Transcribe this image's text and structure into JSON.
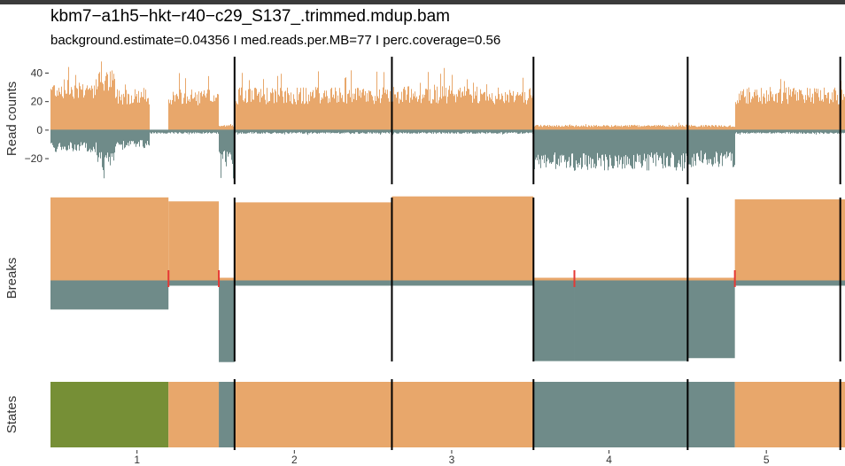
{
  "header": {
    "title": "kbm7−a1h5−hkt−r40−c29_S137_.trimmed.mdup.bam",
    "subtitle": "background.estimate=0.04356  I  med.reads.per.MB=77  I  perc.coverage=0.56"
  },
  "chart_data": {
    "type": "bar",
    "colors": {
      "plus": "#e8a76b",
      "minus": "#6f8b89",
      "break": "#e53935",
      "state_dark": "#768f36",
      "boundary": "#000000"
    },
    "x": {
      "ticks": [
        1,
        2,
        3,
        4,
        5
      ],
      "tick_labels": [
        "1",
        "2",
        "3",
        "4",
        "5"
      ],
      "xlim": [
        0.45,
        5.5
      ]
    },
    "chromosome_boundaries": [
      1.62,
      2.62,
      3.52,
      4.5,
      5.47
    ],
    "read_counts": {
      "ylabel": "Read counts",
      "ylim": [
        -33,
        49
      ],
      "yticks": [
        -20,
        0,
        20,
        40
      ],
      "ytick_labels": [
        "−20",
        "0",
        "20",
        "40"
      ],
      "regions": [
        {
          "start": 0.45,
          "end": 0.74,
          "plus": 29,
          "minus": 12
        },
        {
          "start": 0.74,
          "end": 0.86,
          "plus": 34,
          "minus": 21
        },
        {
          "start": 0.86,
          "end": 1.08,
          "plus": 24,
          "minus": 10
        },
        {
          "start": 1.08,
          "end": 1.2,
          "plus": 0,
          "minus": 2
        },
        {
          "start": 1.2,
          "end": 1.52,
          "plus": 23,
          "minus": 2
        },
        {
          "start": 1.52,
          "end": 1.62,
          "plus": 3,
          "minus": 20
        },
        {
          "start": 1.62,
          "end": 2.62,
          "plus": 24,
          "minus": 2
        },
        {
          "start": 2.62,
          "end": 3.2,
          "plus": 25,
          "minus": 2
        },
        {
          "start": 3.2,
          "end": 3.52,
          "plus": 24,
          "minus": 2
        },
        {
          "start": 3.52,
          "end": 4.5,
          "plus": 3,
          "minus": 22
        },
        {
          "start": 4.5,
          "end": 4.8,
          "plus": 3,
          "minus": 20
        },
        {
          "start": 4.8,
          "end": 5.5,
          "plus": 24,
          "minus": 2
        }
      ]
    },
    "breaks": {
      "ylabel": "Breaks",
      "segments": [
        {
          "start": 0.45,
          "end": 1.2,
          "plus": 0.85,
          "minus": 0.28
        },
        {
          "start": 1.2,
          "end": 1.52,
          "plus": 0.81,
          "minus": 0.04
        },
        {
          "start": 1.52,
          "end": 1.62,
          "plus": 0.04,
          "minus": 0.81
        },
        {
          "start": 1.62,
          "end": 2.62,
          "plus": 0.8,
          "minus": 0.04
        },
        {
          "start": 2.62,
          "end": 3.52,
          "plus": 0.86,
          "minus": 0.04
        },
        {
          "start": 3.52,
          "end": 3.78,
          "plus": 0.04,
          "minus": 0.8
        },
        {
          "start": 3.78,
          "end": 4.5,
          "plus": 0.04,
          "minus": 0.8
        },
        {
          "start": 4.5,
          "end": 4.8,
          "plus": 0.04,
          "minus": 0.77
        },
        {
          "start": 4.8,
          "end": 5.5,
          "plus": 0.83,
          "minus": 0.04
        }
      ],
      "break_positions": [
        1.2,
        1.52,
        3.78,
        4.8
      ]
    },
    "states": {
      "ylabel": "States",
      "segments": [
        {
          "start": 0.45,
          "end": 1.2,
          "color": "#768f36"
        },
        {
          "start": 1.2,
          "end": 1.52,
          "color": "#e8a76b"
        },
        {
          "start": 1.52,
          "end": 1.62,
          "color": "#6f8b89"
        },
        {
          "start": 1.62,
          "end": 3.52,
          "color": "#e8a76b"
        },
        {
          "start": 3.52,
          "end": 4.8,
          "color": "#6f8b89"
        },
        {
          "start": 4.8,
          "end": 5.5,
          "color": "#e8a76b"
        }
      ]
    }
  }
}
